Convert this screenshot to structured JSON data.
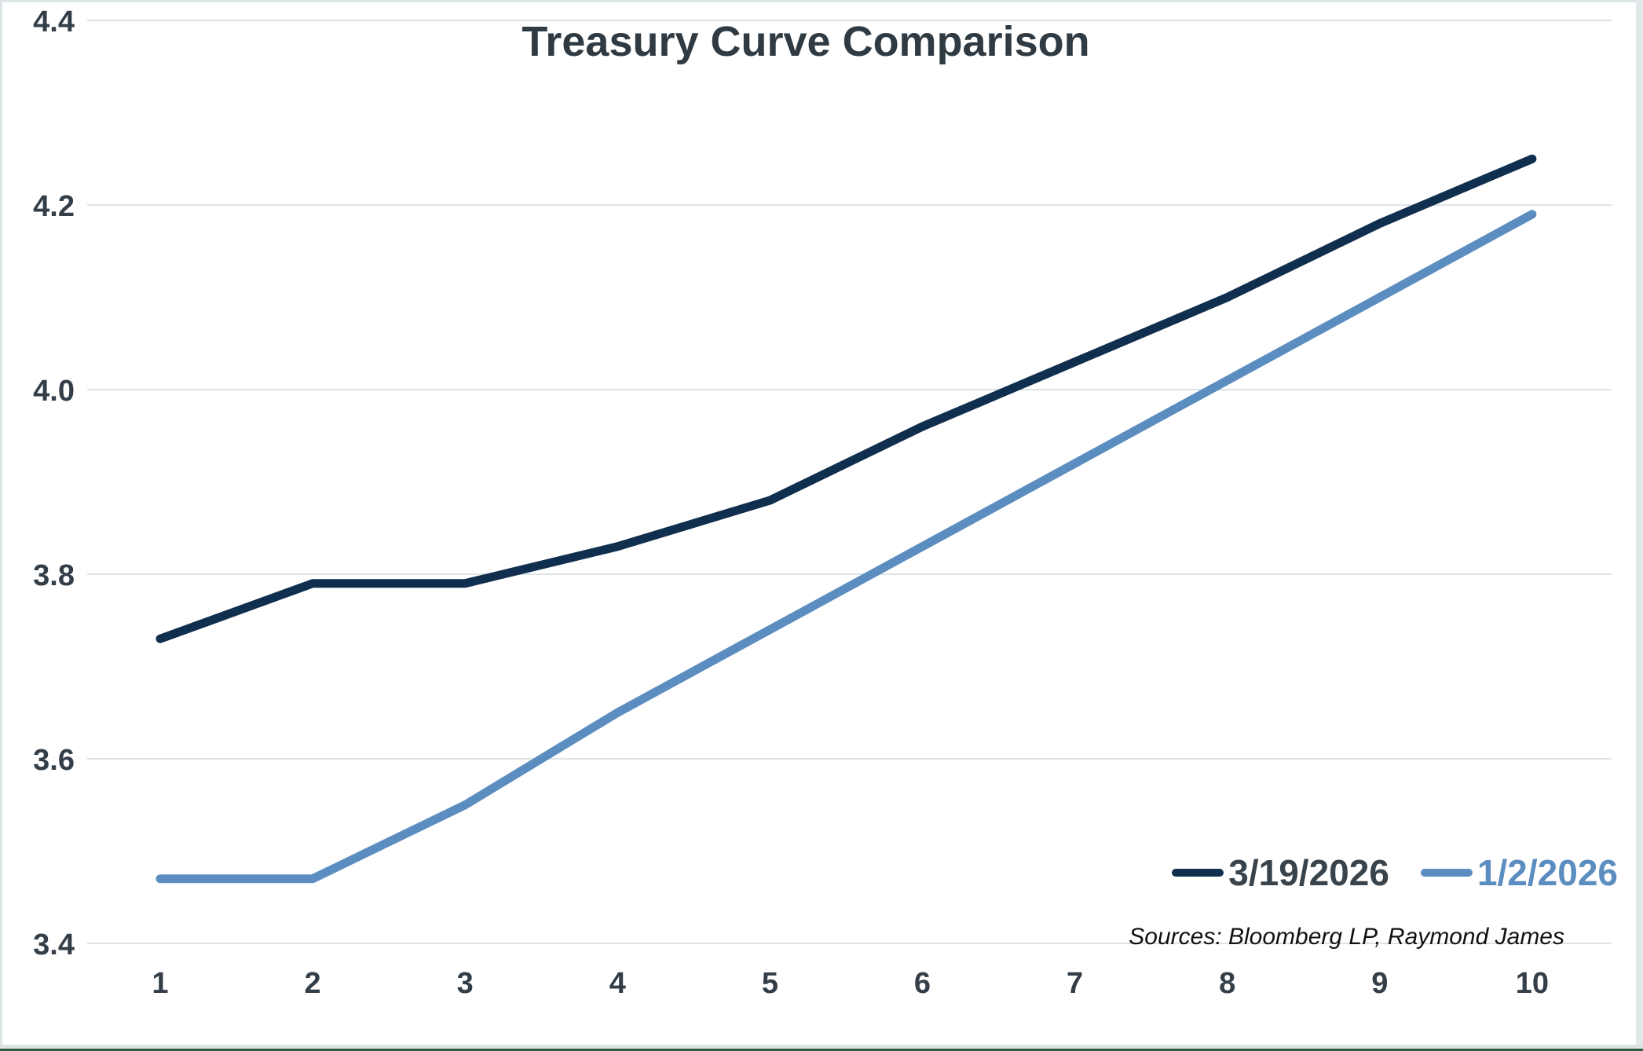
{
  "title": "Treasury Curve Comparison",
  "source_note": "Sources: Bloomberg LP, Raymond James",
  "colors": {
    "series_dark": "#102e4d",
    "series_light_blue": "#5b8dc0",
    "axis_text": "#333e48",
    "title_text": "#2f3a42",
    "gridline": "#dce3e7",
    "frame_bottom_accent": "#2d5b43"
  },
  "chart_data": {
    "type": "line",
    "title": "Treasury Curve Comparison",
    "categories": [
      "1",
      "2",
      "3",
      "4",
      "5",
      "6",
      "7",
      "8",
      "9",
      "10"
    ],
    "series": [
      {
        "name": "3/19/2026",
        "color": "#102e4d",
        "values": [
          3.73,
          3.79,
          3.79,
          3.83,
          3.88,
          3.96,
          4.03,
          4.1,
          4.18,
          4.25
        ]
      },
      {
        "name": "1/2/2026",
        "color": "#5b8dc0",
        "values": [
          3.47,
          3.47,
          3.55,
          3.65,
          3.74,
          3.83,
          3.92,
          4.01,
          4.1,
          4.19
        ]
      }
    ],
    "xlabel": "",
    "ylabel": "",
    "ylim": [
      3.4,
      4.4
    ],
    "yticks": [
      "3.4",
      "3.6",
      "3.8",
      "4.0",
      "4.2",
      "4.4"
    ],
    "grid": "horizontal",
    "legend_position": "bottom-right",
    "source_note": "Sources: Bloomberg LP, Raymond James"
  }
}
